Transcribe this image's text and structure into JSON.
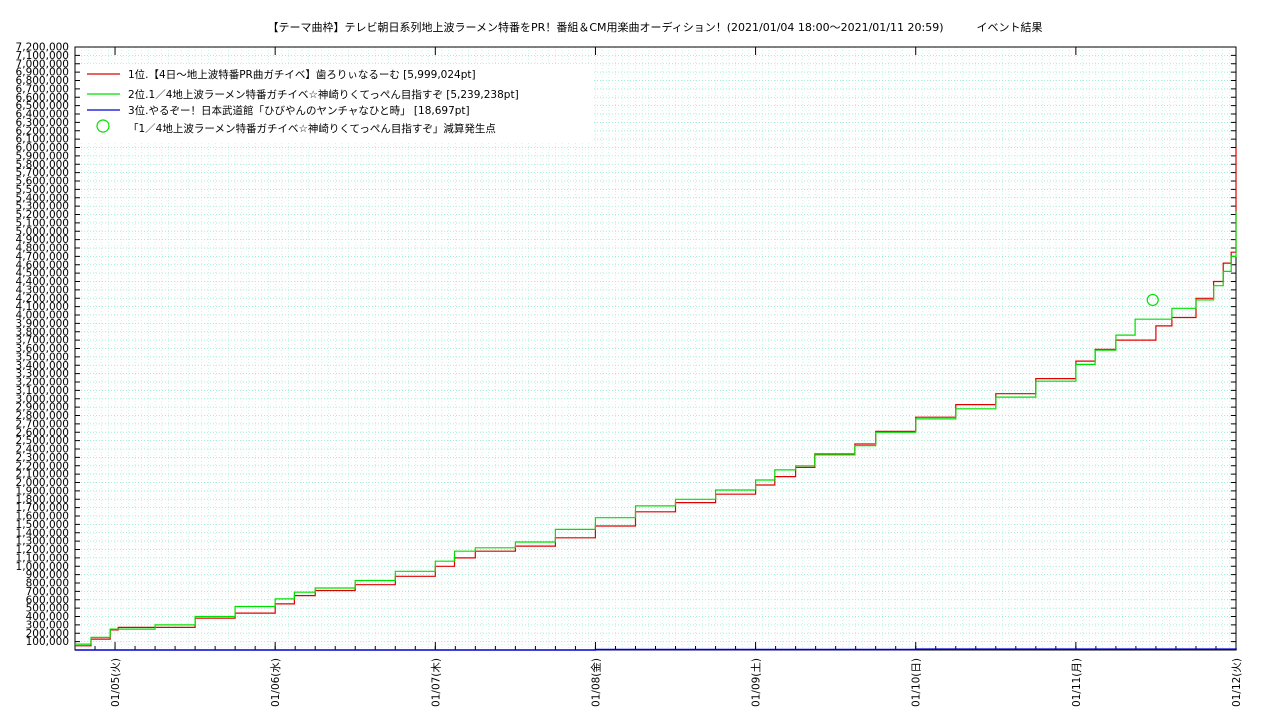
{
  "chart_data": {
    "type": "line",
    "title": "【テーマ曲枠】テレビ朝日系列地上波ラーメン特番をPR！番組＆CM用楽曲オーディション！(2021/01/04 18:00〜2021/01/11 20:59)　　　イベント結果",
    "xlabel": "",
    "ylabel": "",
    "ylim": [
      0,
      7200000
    ],
    "y_tick_step": 100000,
    "y_tick_labels": [
      "100,000",
      "200,000",
      "300,000",
      "400,000",
      "500,000",
      "600,000",
      "700,000",
      "800,000",
      "900,000",
      "1,000,000",
      "1,100,000",
      "1,200,000",
      "1,300,000",
      "1,400,000",
      "1,500,000",
      "1,600,000",
      "1,700,000",
      "1,800,000",
      "1,900,000",
      "2,000,000",
      "2,100,000",
      "2,200,000",
      "2,300,000",
      "2,400,000",
      "2,500,000",
      "2,600,000",
      "2,700,000",
      "2,800,000",
      "2,900,000",
      "3,000,000",
      "3,100,000",
      "3,200,000",
      "3,300,000",
      "3,400,000",
      "3,500,000",
      "3,600,000",
      "3,700,000",
      "3,800,000",
      "3,900,000",
      "4,000,000",
      "4,100,000",
      "4,200,000",
      "4,300,000",
      "4,400,000",
      "4,500,000",
      "4,600,000",
      "4,700,000",
      "4,800,000",
      "4,900,000",
      "5,000,000",
      "5,100,000",
      "5,200,000",
      "5,300,000",
      "5,400,000",
      "5,500,000",
      "5,600,000",
      "5,700,000",
      "5,800,000",
      "5,900,000",
      "6,000,000",
      "6,100,000",
      "6,200,000",
      "6,300,000",
      "6,400,000",
      "6,500,000",
      "6,600,000",
      "6,700,000",
      "6,800,000",
      "6,900,000",
      "7,000,000",
      "7,100,000",
      "7,200,000"
    ],
    "x_unit": "day",
    "xlim": [
      3.75,
      11.0
    ],
    "x_tick_values": [
      4,
      5,
      6,
      7,
      8,
      9,
      10,
      11
    ],
    "x_tick_labels": [
      "01/05(火)",
      "01/06(水)",
      "01/07(木)",
      "01/08(金)",
      "01/09(土)",
      "01/10(日)",
      "01/11(月)",
      "01/12(火)"
    ],
    "grid": true,
    "legend_position": "top-left",
    "series": [
      {
        "name": "1位.【4日〜地上波特番PR曲ガチイベ】歯ろりぃなるーむ [5,999,024pt]",
        "color": "#e00000",
        "points": [
          [
            3.75,
            50000
          ],
          [
            3.85,
            130000
          ],
          [
            3.97,
            240000
          ],
          [
            4.02,
            270000
          ],
          [
            4.25,
            270000
          ],
          [
            4.5,
            380000
          ],
          [
            4.75,
            440000
          ],
          [
            5.0,
            550000
          ],
          [
            5.12,
            650000
          ],
          [
            5.25,
            710000
          ],
          [
            5.5,
            780000
          ],
          [
            5.75,
            880000
          ],
          [
            6.0,
            1000000
          ],
          [
            6.12,
            1100000
          ],
          [
            6.25,
            1180000
          ],
          [
            6.5,
            1240000
          ],
          [
            6.75,
            1340000
          ],
          [
            7.0,
            1480000
          ],
          [
            7.25,
            1650000
          ],
          [
            7.5,
            1760000
          ],
          [
            7.75,
            1860000
          ],
          [
            8.0,
            1970000
          ],
          [
            8.12,
            2070000
          ],
          [
            8.25,
            2180000
          ],
          [
            8.37,
            2340000
          ],
          [
            8.62,
            2460000
          ],
          [
            8.75,
            2610000
          ],
          [
            9.0,
            2780000
          ],
          [
            9.25,
            2930000
          ],
          [
            9.5,
            3060000
          ],
          [
            9.75,
            3240000
          ],
          [
            10.0,
            3450000
          ],
          [
            10.12,
            3590000
          ],
          [
            10.25,
            3700000
          ],
          [
            10.5,
            3870000
          ],
          [
            10.6,
            3970000
          ],
          [
            10.75,
            4200000
          ],
          [
            10.86,
            4400000
          ],
          [
            10.92,
            4620000
          ],
          [
            10.97,
            4750000
          ],
          [
            11.0,
            5999024
          ]
        ]
      },
      {
        "name": "2位.1／4地上波ラーメン特番ガチイベ☆神崎りくてっぺん目指すぞ [5,239,238pt]",
        "color": "#00e000",
        "points": [
          [
            3.75,
            70000
          ],
          [
            3.85,
            150000
          ],
          [
            3.97,
            250000
          ],
          [
            4.25,
            300000
          ],
          [
            4.5,
            400000
          ],
          [
            4.75,
            520000
          ],
          [
            5.0,
            610000
          ],
          [
            5.12,
            690000
          ],
          [
            5.25,
            740000
          ],
          [
            5.5,
            830000
          ],
          [
            5.75,
            940000
          ],
          [
            6.0,
            1060000
          ],
          [
            6.12,
            1180000
          ],
          [
            6.25,
            1220000
          ],
          [
            6.5,
            1290000
          ],
          [
            6.75,
            1440000
          ],
          [
            7.0,
            1580000
          ],
          [
            7.25,
            1720000
          ],
          [
            7.5,
            1800000
          ],
          [
            7.75,
            1910000
          ],
          [
            8.0,
            2030000
          ],
          [
            8.12,
            2150000
          ],
          [
            8.25,
            2200000
          ],
          [
            8.37,
            2330000
          ],
          [
            8.62,
            2440000
          ],
          [
            8.75,
            2600000
          ],
          [
            9.0,
            2760000
          ],
          [
            9.25,
            2880000
          ],
          [
            9.5,
            3020000
          ],
          [
            9.75,
            3210000
          ],
          [
            10.0,
            3410000
          ],
          [
            10.12,
            3580000
          ],
          [
            10.25,
            3760000
          ],
          [
            10.37,
            3950000
          ],
          [
            10.6,
            4080000
          ],
          [
            10.75,
            4180000
          ],
          [
            10.86,
            4350000
          ],
          [
            10.92,
            4520000
          ],
          [
            10.97,
            4700000
          ],
          [
            11.0,
            5239238
          ]
        ]
      },
      {
        "name": "3位.やるぞー！日本武道館「ひびやんのヤンチャなひと時」 [18,697pt]",
        "color": "#0000d0",
        "points": [
          [
            3.75,
            0
          ],
          [
            6.0,
            0
          ],
          [
            7.0,
            5000
          ],
          [
            9.0,
            10000
          ],
          [
            11.0,
            18697
          ]
        ]
      }
    ],
    "markers": {
      "name": "「1／4地上波ラーメン特番ガチイベ☆神崎りくてっぺん目指すぞ」減算発生点",
      "color": "#00e000",
      "points": [
        [
          10.48,
          4180000
        ]
      ]
    }
  }
}
